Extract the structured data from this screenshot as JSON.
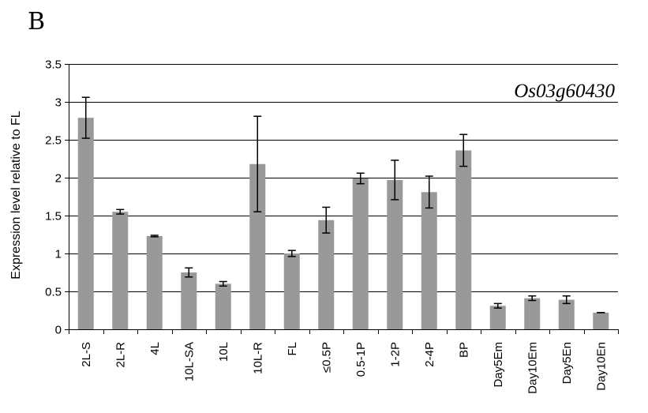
{
  "panel_label": "B",
  "chart_data": {
    "type": "bar",
    "title": "Os03g60430",
    "xlabel": "",
    "ylabel": "Expression level relative to FL",
    "ylim": [
      0,
      3.5
    ],
    "yticks": [
      "0",
      "0.5",
      "1",
      "1.5",
      "2",
      "2.5",
      "3",
      "3.5"
    ],
    "ytick_values": [
      0,
      0.5,
      1,
      1.5,
      2,
      2.5,
      3,
      3.5
    ],
    "grid": true,
    "bar_color": "#999999",
    "categories": [
      "2L-S",
      "2L-R",
      "4L",
      "10L-SA",
      "10L",
      "10L-R",
      "FL",
      "≤0.5P",
      "0.5-1P",
      "1-2P",
      "2-4P",
      "BP",
      "Day5Em",
      "Day10Em",
      "Day5En",
      "Day10En"
    ],
    "values": [
      2.79,
      1.55,
      1.23,
      0.75,
      0.6,
      2.18,
      1.0,
      1.44,
      1.99,
      1.97,
      1.81,
      2.36,
      0.31,
      0.41,
      0.39,
      0.22
    ],
    "errors": [
      0.27,
      0.03,
      0.01,
      0.06,
      0.03,
      0.63,
      0.04,
      0.17,
      0.07,
      0.26,
      0.21,
      0.21,
      0.03,
      0.03,
      0.05,
      0.0
    ]
  }
}
